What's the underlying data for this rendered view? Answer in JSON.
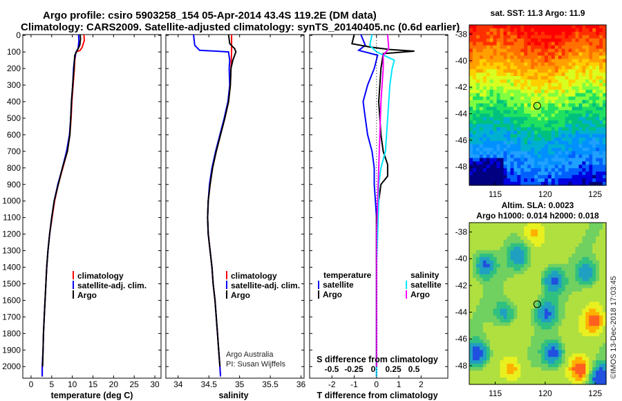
{
  "header": {
    "line1": "Argo profile: csiro 5903258_154 05-Apr-2014 43.4S 119.2E (DM data)",
    "line2": "Climatology: CARS2009. Satellite-adjusted climatology: synTS_20140405.nc (0.6d earlier)"
  },
  "depth_ticks": [
    "0",
    "100",
    "200",
    "300",
    "400",
    "500",
    "600",
    "700",
    "800",
    "900",
    "1000",
    "1100",
    "1200",
    "1300",
    "1400",
    "1500",
    "1600",
    "1700",
    "1800",
    "1900",
    "2000"
  ],
  "colors": {
    "climatology": "#ff0000",
    "satellite": "#0000ff",
    "argo": "#000000",
    "satellite_salinity": "#00e5ff",
    "argo_salinity": "#ff00ff"
  },
  "chart_data": [
    {
      "type": "line",
      "name": "temperature",
      "xlabel": "temperature (deg C)",
      "xticks": [
        "0",
        "5",
        "10",
        "15",
        "20",
        "25",
        "30"
      ],
      "xlim": [
        -2,
        31.5
      ],
      "ylim": [
        -5,
        2070
      ],
      "y_reversed": true,
      "legend": [
        "climatology",
        "satellite-adj. clim.",
        "Argo"
      ],
      "series": [
        {
          "name": "climatology",
          "color": "#ff0000",
          "points": [
            [
              12.8,
              -5
            ],
            [
              12.9,
              30
            ],
            [
              12.4,
              70
            ],
            [
              11.9,
              90
            ],
            [
              10.9,
              100
            ],
            [
              10.6,
              150
            ],
            [
              10.5,
              200
            ],
            [
              10.2,
              300
            ],
            [
              9.9,
              400
            ],
            [
              9.7,
              500
            ],
            [
              9.4,
              600
            ],
            [
              8.8,
              700
            ],
            [
              7.7,
              800
            ],
            [
              6.6,
              900
            ],
            [
              5.7,
              1000
            ],
            [
              5.1,
              1100
            ],
            [
              4.5,
              1200
            ],
            [
              4.1,
              1300
            ],
            [
              3.8,
              1400
            ],
            [
              3.6,
              1500
            ],
            [
              3.4,
              1600
            ],
            [
              3.2,
              1700
            ],
            [
              3.0,
              1800
            ],
            [
              2.9,
              1900
            ],
            [
              2.7,
              2000
            ],
            [
              2.7,
              2060
            ]
          ]
        },
        {
          "name": "satellite-adj. clim.",
          "color": "#0000ff",
          "points": [
            [
              11.5,
              -5
            ],
            [
              11.6,
              30
            ],
            [
              11.4,
              80
            ],
            [
              10.9,
              100
            ],
            [
              10.5,
              150
            ],
            [
              10.3,
              200
            ],
            [
              10.1,
              300
            ],
            [
              9.8,
              400
            ],
            [
              9.6,
              500
            ],
            [
              9.3,
              600
            ],
            [
              8.6,
              700
            ],
            [
              7.6,
              800
            ],
            [
              6.5,
              900
            ],
            [
              5.6,
              1000
            ],
            [
              5.0,
              1100
            ],
            [
              4.5,
              1200
            ],
            [
              4.1,
              1300
            ],
            [
              3.8,
              1400
            ],
            [
              3.6,
              1500
            ],
            [
              3.4,
              1600
            ],
            [
              3.2,
              1700
            ],
            [
              3.0,
              1800
            ],
            [
              2.9,
              1900
            ],
            [
              2.7,
              2000
            ],
            [
              2.7,
              2060
            ]
          ]
        },
        {
          "name": "Argo",
          "color": "#000000",
          "points": [
            [
              11.9,
              -5
            ],
            [
              12.0,
              20
            ],
            [
              11.8,
              60
            ],
            [
              11.2,
              90
            ],
            [
              10.6,
              120
            ],
            [
              10.4,
              200
            ],
            [
              10.1,
              300
            ],
            [
              9.8,
              400
            ],
            [
              9.6,
              500
            ],
            [
              9.4,
              600
            ],
            [
              8.8,
              700
            ],
            [
              7.6,
              800
            ],
            [
              6.6,
              900
            ],
            [
              5.6,
              1000
            ],
            [
              5.0,
              1100
            ],
            [
              4.5,
              1200
            ],
            [
              4.1,
              1300
            ],
            [
              3.8,
              1400
            ],
            [
              3.6,
              1500
            ],
            [
              3.4,
              1600
            ],
            [
              3.2,
              1700
            ],
            [
              3.0,
              1800
            ],
            [
              2.9,
              1900
            ],
            [
              2.8,
              2000
            ]
          ]
        }
      ]
    },
    {
      "type": "line",
      "name": "salinity",
      "xlabel": "salinity",
      "xticks": [
        "34",
        "34.5",
        "35",
        "35.5",
        "36"
      ],
      "xlim": [
        33.8,
        36.05
      ],
      "ylim": [
        -5,
        2070
      ],
      "y_reversed": true,
      "legend": [
        "climatology",
        "satellite-adj. clim.",
        "Argo"
      ],
      "note": [
        "Argo Australia",
        "PI: Susan Wijffels"
      ],
      "series": [
        {
          "name": "climatology",
          "color": "#ff0000",
          "points": [
            [
              34.87,
              -5
            ],
            [
              34.87,
              100
            ],
            [
              34.86,
              200
            ],
            [
              34.85,
              300
            ],
            [
              34.82,
              400
            ],
            [
              34.76,
              500
            ],
            [
              34.69,
              600
            ],
            [
              34.62,
              700
            ],
            [
              34.56,
              800
            ],
            [
              34.52,
              900
            ],
            [
              34.49,
              1000
            ],
            [
              34.48,
              1100
            ],
            [
              34.49,
              1200
            ],
            [
              34.52,
              1300
            ],
            [
              34.55,
              1400
            ],
            [
              34.57,
              1500
            ],
            [
              34.6,
              1600
            ],
            [
              34.62,
              1700
            ],
            [
              34.64,
              1800
            ],
            [
              34.66,
              1900
            ],
            [
              34.68,
              2000
            ],
            [
              34.69,
              2060
            ]
          ]
        },
        {
          "name": "satellite-adj. clim.",
          "color": "#0000ff",
          "points": [
            [
              34.25,
              -5
            ],
            [
              34.27,
              60
            ],
            [
              34.35,
              90
            ],
            [
              34.62,
              95
            ],
            [
              34.82,
              100
            ],
            [
              34.84,
              150
            ],
            [
              34.83,
              200
            ],
            [
              34.84,
              300
            ],
            [
              34.81,
              400
            ],
            [
              34.75,
              500
            ],
            [
              34.68,
              600
            ],
            [
              34.61,
              700
            ],
            [
              34.55,
              800
            ],
            [
              34.51,
              900
            ],
            [
              34.49,
              1000
            ],
            [
              34.48,
              1100
            ],
            [
              34.49,
              1200
            ],
            [
              34.52,
              1300
            ],
            [
              34.55,
              1400
            ],
            [
              34.57,
              1500
            ],
            [
              34.6,
              1600
            ],
            [
              34.62,
              1700
            ],
            [
              34.64,
              1800
            ],
            [
              34.66,
              1900
            ],
            [
              34.68,
              2000
            ],
            [
              34.69,
              2060
            ]
          ]
        },
        {
          "name": "Argo",
          "color": "#000000",
          "points": [
            [
              34.82,
              -5
            ],
            [
              34.84,
              50
            ],
            [
              34.92,
              80
            ],
            [
              34.94,
              100
            ],
            [
              34.89,
              150
            ],
            [
              34.86,
              200
            ],
            [
              34.85,
              300
            ],
            [
              34.82,
              400
            ],
            [
              34.76,
              500
            ],
            [
              34.69,
              600
            ],
            [
              34.62,
              700
            ],
            [
              34.56,
              800
            ],
            [
              34.52,
              900
            ],
            [
              34.49,
              1000
            ],
            [
              34.48,
              1100
            ],
            [
              34.49,
              1200
            ],
            [
              34.52,
              1300
            ],
            [
              34.55,
              1400
            ],
            [
              34.57,
              1500
            ],
            [
              34.6,
              1600
            ],
            [
              34.62,
              1700
            ],
            [
              34.64,
              1800
            ],
            [
              34.66,
              1900
            ],
            [
              34.68,
              2000
            ]
          ]
        }
      ]
    },
    {
      "type": "line",
      "name": "difference",
      "xlabel": "T difference from climatology",
      "xlabel2": "S difference from climatology",
      "xticks": [
        "-2",
        "-1",
        "0",
        "1",
        "2"
      ],
      "xticks_s": [
        "-0.5",
        "-0.25",
        "0",
        "0.25",
        "0.5"
      ],
      "xlim": [
        -3.0,
        3.2
      ],
      "ylim": [
        -5,
        2070
      ],
      "y_reversed": true,
      "legend_titles": [
        "temperature",
        "salinity"
      ],
      "legend_t": [
        "satellite",
        "Argo"
      ],
      "legend_s": [
        "satellite",
        "Argo"
      ],
      "series": [
        {
          "name": "satellite",
          "color": "#0000ff",
          "points": [
            [
              -0.7,
              -5
            ],
            [
              -0.5,
              60
            ],
            [
              -0.8,
              90
            ],
            [
              0.05,
              120
            ],
            [
              -0.1,
              200
            ],
            [
              -0.4,
              300
            ],
            [
              -0.6,
              400
            ],
            [
              -0.5,
              500
            ],
            [
              -0.4,
              600
            ],
            [
              -0.2,
              700
            ],
            [
              -0.1,
              800
            ],
            [
              -0.1,
              900
            ],
            [
              -0.05,
              1000
            ],
            [
              0.0,
              1100
            ],
            [
              0.0,
              1200
            ],
            [
              0.0,
              1300
            ],
            [
              0.0,
              1400
            ],
            [
              0.0,
              1500
            ],
            [
              0.0,
              1600
            ],
            [
              0.0,
              1700
            ],
            [
              0.0,
              1800
            ],
            [
              0.0,
              1900
            ],
            [
              0.0,
              2000
            ],
            [
              0.0,
              2060
            ]
          ]
        },
        {
          "name": "Argo",
          "color": "#000000",
          "points": [
            [
              -1.0,
              -5
            ],
            [
              -1.1,
              50
            ],
            [
              -0.3,
              70
            ],
            [
              0.6,
              85
            ],
            [
              1.7,
              95
            ],
            [
              0.3,
              110
            ],
            [
              0.2,
              200
            ],
            [
              0.1,
              400
            ],
            [
              0.2,
              600
            ],
            [
              0.3,
              700
            ],
            [
              0.5,
              780
            ],
            [
              0.5,
              850
            ],
            [
              0.2,
              900
            ],
            [
              0.1,
              1000
            ],
            [
              0.0,
              1100
            ],
            [
              0.0,
              1300
            ],
            [
              0.0,
              1500
            ],
            [
              0.0,
              1700
            ],
            [
              0.0,
              1900
            ],
            [
              0.0,
              2000
            ]
          ]
        },
        {
          "name": "satellite salinity",
          "color": "#00e5ff",
          "points": [
            [
              -0.2,
              -5
            ],
            [
              -0.3,
              60
            ],
            [
              0.0,
              100
            ],
            [
              0.8,
              150
            ],
            [
              0.7,
              200
            ],
            [
              0.6,
              300
            ],
            [
              0.5,
              500
            ],
            [
              0.4,
              700
            ],
            [
              0.2,
              800
            ],
            [
              0.1,
              900
            ],
            [
              0.1,
              1000
            ],
            [
              0.05,
              1200
            ],
            [
              0.0,
              1400
            ],
            [
              0.0,
              1600
            ],
            [
              0.0,
              1800
            ],
            [
              0.0,
              2000
            ],
            [
              0.0,
              2060
            ]
          ]
        },
        {
          "name": "Argo salinity",
          "color": "#ff00ff",
          "points": [
            [
              0.5,
              -5
            ],
            [
              0.55,
              80
            ],
            [
              0.3,
              120
            ],
            [
              0.3,
              200
            ],
            [
              0.2,
              400
            ],
            [
              0.15,
              600
            ],
            [
              0.1,
              800
            ],
            [
              0.05,
              1000
            ],
            [
              0.0,
              1200
            ],
            [
              0.0,
              1500
            ],
            [
              0.0,
              1800
            ],
            [
              0.0,
              2000
            ]
          ]
        }
      ]
    }
  ],
  "maps": {
    "sst": {
      "title": "sat. SST: 11.3 Argo: 11.9",
      "yticks": [
        "-38",
        "-40",
        "-42",
        "-44",
        "-46",
        "-48"
      ],
      "xticks": [
        "115",
        "120",
        "125"
      ],
      "lon": [
        112.4,
        126.1
      ],
      "lat": [
        -37.3,
        -49.4
      ],
      "marker": {
        "lon": 119.2,
        "lat": -43.4
      }
    },
    "sla": {
      "title1": "Altim. SLA: 0.0023",
      "title2": "Argo h1000: 0.014 h2000: 0.018",
      "yticks": [
        "-38",
        "-40",
        "-42",
        "-44",
        "-46",
        "-48"
      ],
      "xticks": [
        "115",
        "120",
        "125"
      ],
      "lon": [
        112.4,
        126.1
      ],
      "lat": [
        -37.3,
        -49.4
      ],
      "marker": {
        "lon": 119.2,
        "lat": -43.4
      }
    }
  },
  "credit": "©IMOS 13-Dec-2018 17:03:45"
}
